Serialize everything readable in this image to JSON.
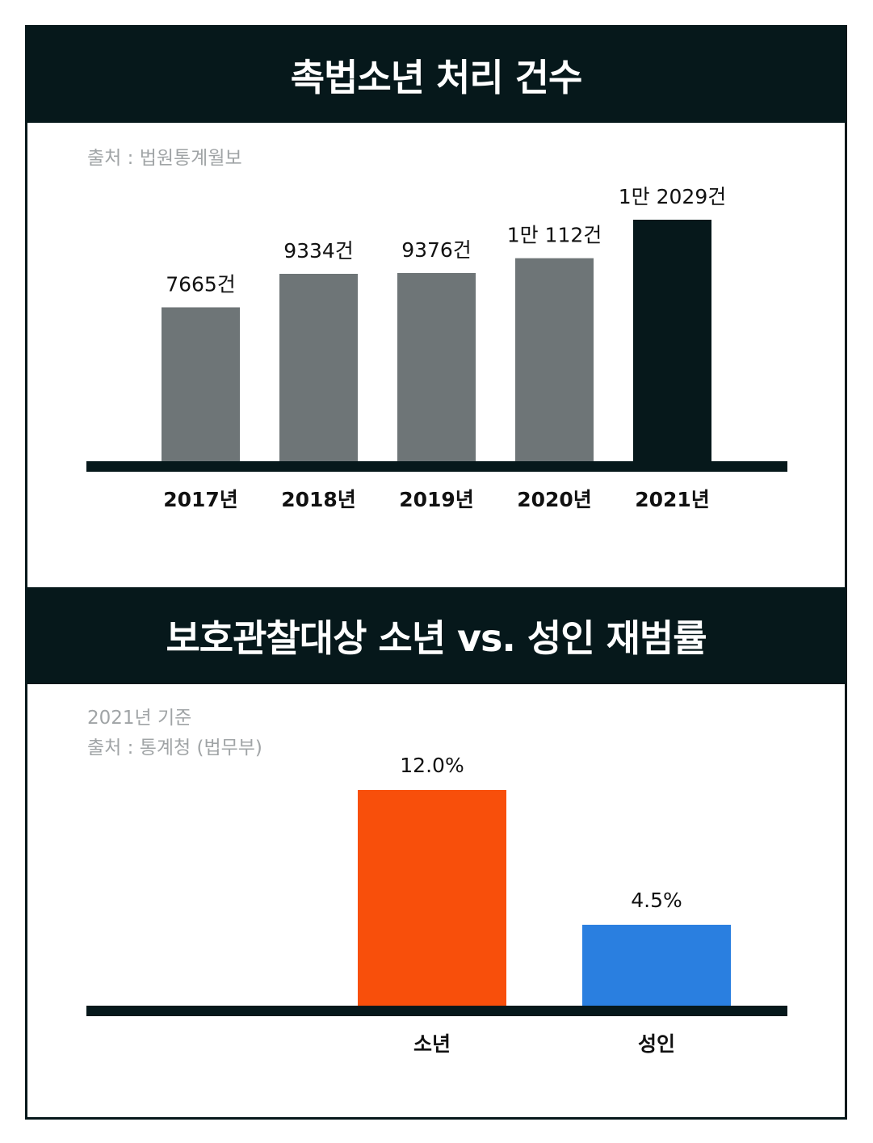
{
  "chart_data": [
    {
      "type": "bar",
      "title": "촉법소년 처리 건수",
      "source": "출처 : 법원통계월보",
      "categories": [
        "2017년",
        "2018년",
        "2019년",
        "2020년",
        "2021년"
      ],
      "values": [
        7665,
        9334,
        9376,
        10112,
        12029
      ],
      "value_labels": [
        "7665건",
        "9334건",
        "9376건",
        "1만 112건",
        "1만 2029건"
      ],
      "colors": [
        "#6e7577",
        "#6e7577",
        "#6e7577",
        "#6e7577",
        "#06181b"
      ],
      "ylim": [
        0,
        12029
      ]
    },
    {
      "type": "bar",
      "title": "보호관찰대상 소년 vs. 성인 재범률",
      "note": "2021년 기준",
      "source": "출처 : 통계청 (법무부)",
      "categories": [
        "소년",
        "성인"
      ],
      "values": [
        12.0,
        4.5
      ],
      "value_labels": [
        "12.0%",
        "4.5%"
      ],
      "colors": [
        "#f84f0b",
        "#2a7fe0"
      ],
      "ylim": [
        0,
        12.0
      ]
    }
  ]
}
